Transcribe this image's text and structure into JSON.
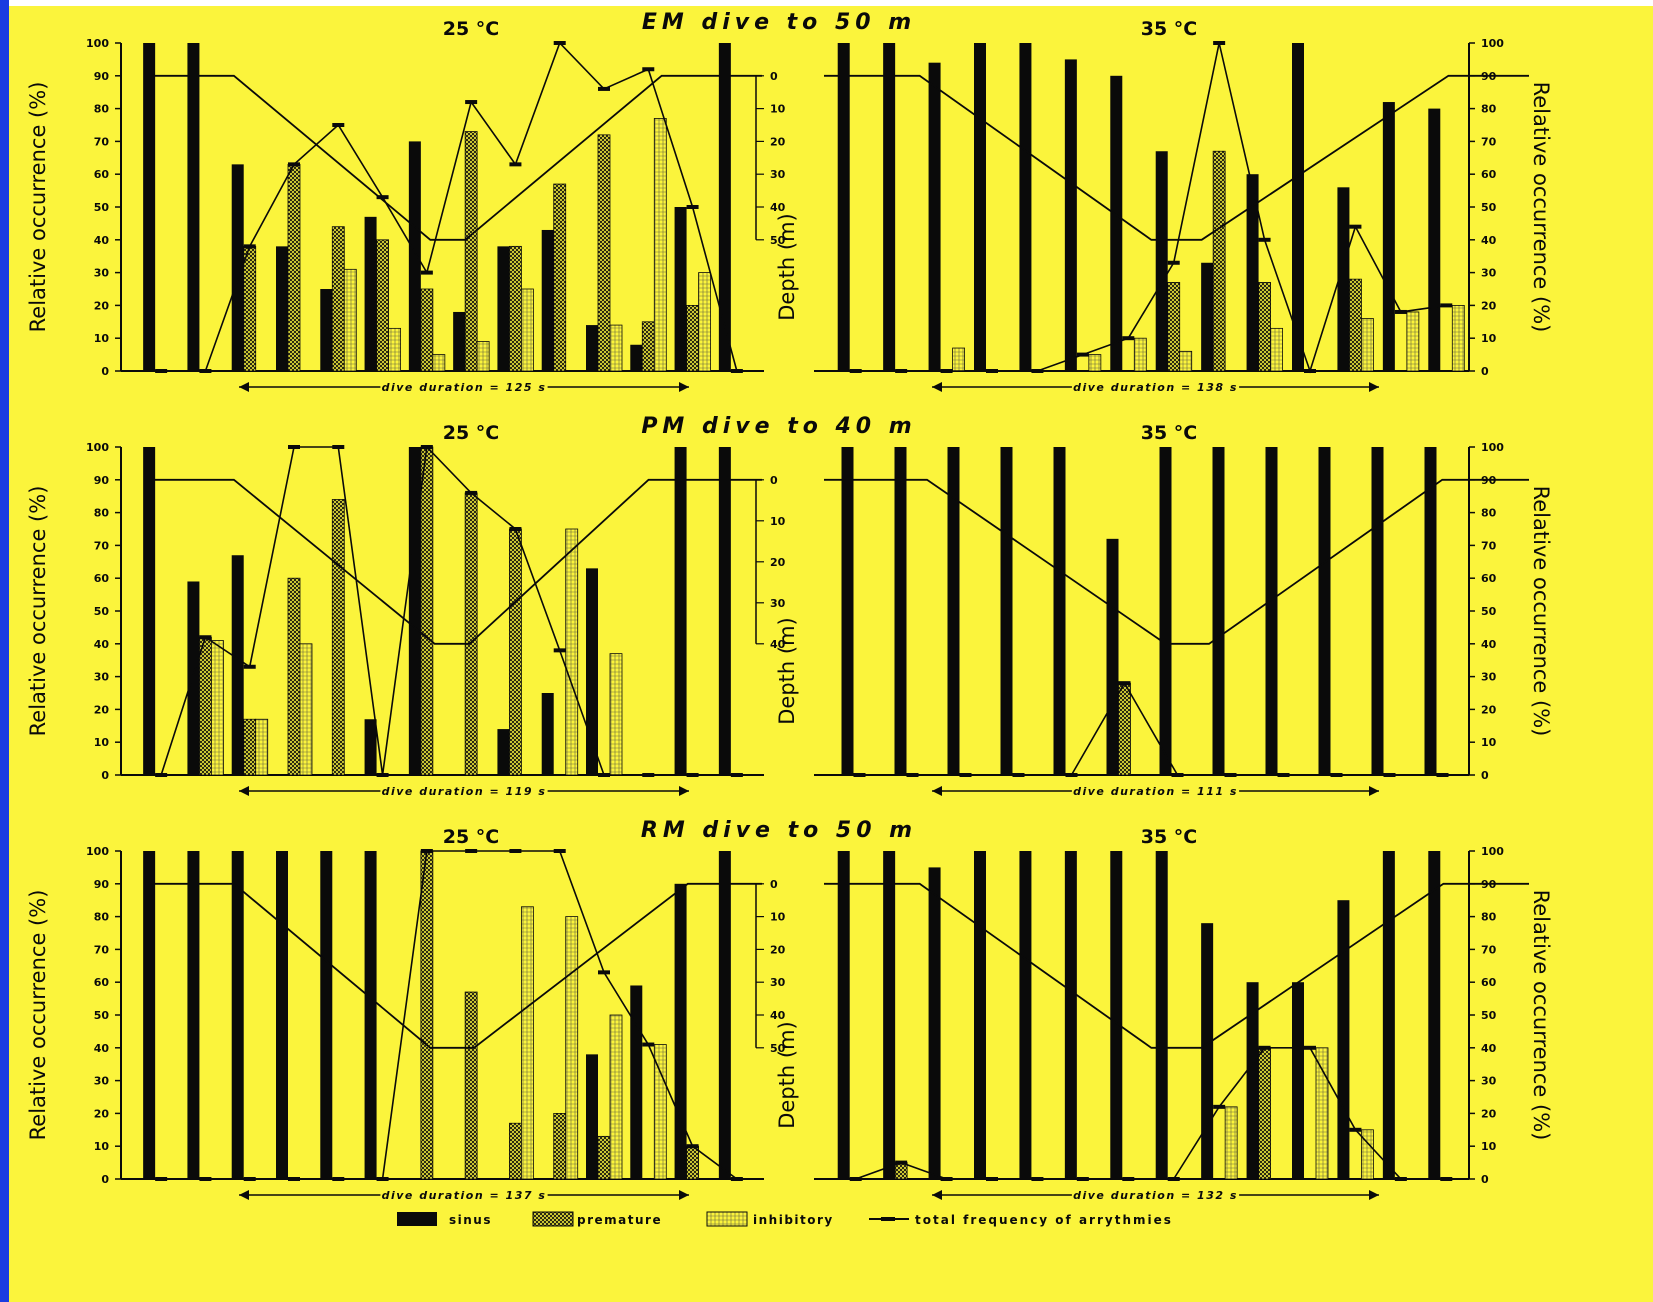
{
  "colors": {
    "background": "#fbf43c",
    "ink": "#0a0a0a",
    "page_border": "#1a3be0"
  },
  "legend": {
    "sinus": "sinus",
    "premature": "premature",
    "inhibitory": "inhibitory",
    "total": "total frequency of arrythmies"
  },
  "chart_data": [
    {
      "type": "bar",
      "title": "EM dive to 50 m",
      "subtitle": "25 °C",
      "ylabel": "Relative occurrence (%)",
      "ylabel2": "Depth (m)",
      "ylim": [
        0,
        100
      ],
      "depth_ticks": [
        0,
        10,
        20,
        30,
        40,
        50
      ],
      "depth_max": 50,
      "duration_label": "dive duration = 125 s",
      "sinus": [
        100,
        100,
        63,
        38,
        25,
        47,
        70,
        18,
        38,
        43,
        14,
        8,
        50,
        100
      ],
      "premature": [
        0,
        0,
        38,
        63,
        44,
        40,
        25,
        73,
        38,
        57,
        72,
        15,
        20,
        0
      ],
      "inhibitory": [
        0,
        0,
        0,
        0,
        31,
        13,
        5,
        9,
        25,
        0,
        14,
        77,
        30,
        0
      ],
      "total": [
        0,
        0,
        38,
        63,
        75,
        53,
        30,
        82,
        63,
        100,
        86,
        92,
        50,
        0
      ],
      "depth_profile_x": [
        0,
        1.9,
        6.4,
        7.2,
        11.7,
        14
      ],
      "depth_profile_depth": [
        0,
        0,
        50,
        50,
        0,
        0
      ]
    },
    {
      "type": "bar",
      "title": "",
      "subtitle": "35 °C",
      "ylabel": "",
      "ylabel2": "Relative occurrence (%)",
      "ylim": [
        0,
        100
      ],
      "depth_ticks": [],
      "depth_max": 50,
      "duration_label": "dive duration = 138 s",
      "sinus": [
        100,
        100,
        94,
        100,
        100,
        95,
        90,
        67,
        33,
        60,
        100,
        56,
        82,
        80
      ],
      "premature": [
        0,
        0,
        0,
        0,
        0,
        0,
        0,
        27,
        67,
        27,
        0,
        28,
        0,
        0
      ],
      "inhibitory": [
        0,
        0,
        7,
        0,
        0,
        5,
        10,
        6,
        0,
        13,
        0,
        16,
        18,
        20
      ],
      "total": [
        0,
        0,
        0,
        0,
        0,
        5,
        10,
        33,
        100,
        40,
        0,
        44,
        18,
        20
      ],
      "depth_profile_x": [
        0,
        1.9,
        6.5,
        7.5,
        12.4,
        14
      ],
      "depth_profile_depth": [
        0,
        0,
        50,
        50,
        0,
        0
      ]
    },
    {
      "type": "bar",
      "title": "PM dive to 40 m",
      "subtitle": "25 °C",
      "ylabel": "Relative occurrence (%)",
      "ylabel2": "Depth (m)",
      "ylim": [
        0,
        100
      ],
      "depth_ticks": [
        0,
        10,
        20,
        30,
        40
      ],
      "depth_max": 40,
      "duration_label": "dive duration = 119 s",
      "sinus": [
        100,
        59,
        67,
        0,
        0,
        17,
        100,
        0,
        14,
        25,
        63,
        0,
        100,
        100
      ],
      "premature": [
        0,
        42,
        17,
        60,
        84,
        0,
        100,
        86,
        75,
        0,
        0,
        0,
        0,
        0
      ],
      "inhibitory": [
        0,
        41,
        17,
        40,
        0,
        0,
        0,
        0,
        0,
        75,
        37,
        0,
        0,
        0
      ],
      "total": [
        0,
        42,
        33,
        100,
        100,
        0,
        100,
        86,
        75,
        38,
        0,
        0,
        0,
        0
      ],
      "depth_profile_x": [
        0,
        1.9,
        6.5,
        7.3,
        11.4,
        14
      ],
      "depth_profile_depth": [
        0,
        0,
        40,
        40,
        0,
        0
      ]
    },
    {
      "type": "bar",
      "title": "",
      "subtitle": "35 °C",
      "ylabel": "",
      "ylabel2": "Relative occurrence (%)",
      "ylim": [
        0,
        100
      ],
      "depth_ticks": [],
      "depth_max": 40,
      "duration_label": "dive duration = 111 s",
      "sinus": [
        100,
        100,
        100,
        100,
        100,
        72,
        100,
        100,
        100,
        100,
        100,
        100
      ],
      "premature": [
        0,
        0,
        0,
        0,
        0,
        28,
        0,
        0,
        0,
        0,
        0,
        0
      ],
      "inhibitory": [
        0,
        0,
        0,
        0,
        0,
        0,
        0,
        0,
        0,
        0,
        0,
        0
      ],
      "total": [
        0,
        0,
        0,
        0,
        0,
        28,
        0,
        0,
        0,
        0,
        0,
        0
      ],
      "depth_profile_x": [
        0,
        1.9,
        6.3,
        7.1,
        11.4,
        13
      ],
      "depth_profile_depth": [
        0,
        0,
        40,
        40,
        0,
        0
      ]
    },
    {
      "type": "bar",
      "title": "RM dive to 50 m",
      "subtitle": "25 °C",
      "ylabel": "Relative occurrence (%)",
      "ylabel2": "Depth (m)",
      "ylim": [
        0,
        100
      ],
      "depth_ticks": [
        0,
        10,
        20,
        30,
        40,
        50
      ],
      "depth_max": 50,
      "duration_label": "dive duration = 137 s",
      "sinus": [
        100,
        100,
        100,
        100,
        100,
        100,
        0,
        0,
        0,
        0,
        38,
        59,
        90,
        100
      ],
      "premature": [
        0,
        0,
        0,
        0,
        0,
        0,
        100,
        57,
        17,
        20,
        13,
        0,
        10,
        0
      ],
      "inhibitory": [
        0,
        0,
        0,
        0,
        0,
        0,
        0,
        0,
        83,
        80,
        50,
        41,
        0,
        0
      ],
      "total": [
        0,
        0,
        0,
        0,
        0,
        0,
        100,
        100,
        100,
        100,
        63,
        41,
        10,
        0
      ],
      "depth_profile_x": [
        0,
        1.9,
        6.4,
        7.4,
        12.3,
        14
      ],
      "depth_profile_depth": [
        0,
        0,
        50,
        50,
        0,
        0
      ]
    },
    {
      "type": "bar",
      "title": "",
      "subtitle": "35 °C",
      "ylabel": "",
      "ylabel2": "Relative occurrence (%)",
      "ylim": [
        0,
        100
      ],
      "depth_ticks": [],
      "depth_max": 50,
      "duration_label": "dive duration = 132 s",
      "sinus": [
        100,
        100,
        95,
        100,
        100,
        100,
        100,
        100,
        78,
        60,
        60,
        85,
        100,
        100
      ],
      "premature": [
        0,
        5,
        0,
        0,
        0,
        0,
        0,
        0,
        0,
        40,
        0,
        0,
        0,
        0
      ],
      "inhibitory": [
        0,
        0,
        0,
        0,
        0,
        0,
        0,
        0,
        22,
        0,
        40,
        15,
        0,
        0
      ],
      "total": [
        0,
        5,
        0,
        0,
        0,
        0,
        0,
        0,
        22,
        40,
        40,
        15,
        0,
        0
      ],
      "depth_profile_x": [
        0,
        1.9,
        6.5,
        7.5,
        12.3,
        14
      ],
      "depth_profile_depth": [
        0,
        0,
        50,
        50,
        0,
        0
      ]
    }
  ]
}
